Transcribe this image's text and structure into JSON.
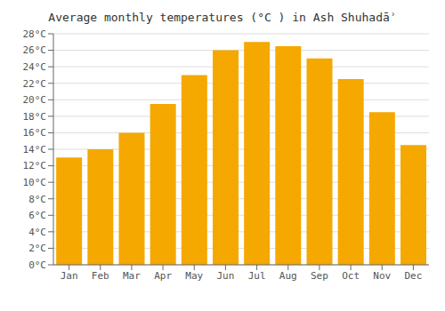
{
  "chart_data": {
    "type": "bar",
    "title": "Average monthly temperatures (°C ) in Ash Shuhadāʾ",
    "categories": [
      "Jan",
      "Feb",
      "Mar",
      "Apr",
      "May",
      "Jun",
      "Jul",
      "Aug",
      "Sep",
      "Oct",
      "Nov",
      "Dec"
    ],
    "values": [
      13.0,
      14.0,
      16.0,
      19.5,
      23.0,
      26.0,
      27.0,
      26.5,
      25.0,
      22.5,
      18.5,
      14.5
    ],
    "color": "#F5A800",
    "ylim": [
      0,
      28
    ],
    "yticks": [
      {
        "value": 0,
        "label": "0°C"
      },
      {
        "value": 2,
        "label": "2°C"
      },
      {
        "value": 4,
        "label": "4°C"
      },
      {
        "value": 6,
        "label": "6°C"
      },
      {
        "value": 8,
        "label": "8°C"
      },
      {
        "value": 10,
        "label": "10°C"
      },
      {
        "value": 12,
        "label": "12°C"
      },
      {
        "value": 14,
        "label": "14°C"
      },
      {
        "value": 16,
        "label": "16°C"
      },
      {
        "value": 18,
        "label": "18°C"
      },
      {
        "value": 20,
        "label": "20°C"
      },
      {
        "value": 22,
        "label": "22°C"
      },
      {
        "value": 24,
        "label": "24°C"
      },
      {
        "value": 26,
        "label": "26°C"
      },
      {
        "value": 28,
        "label": "28°C"
      }
    ],
    "grid": true
  }
}
